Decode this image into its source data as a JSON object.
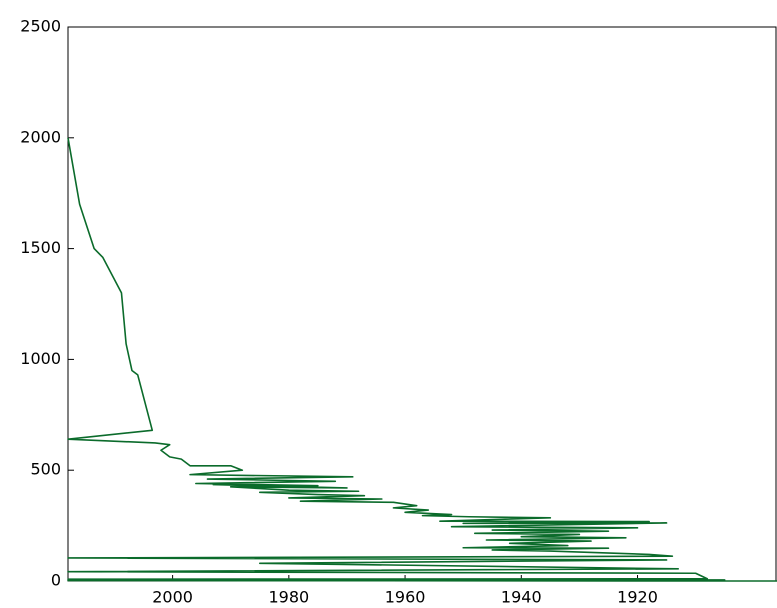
{
  "chart_data": {
    "type": "line",
    "color": "#0b6b2b",
    "x": [
      2018,
      2016,
      2013.5,
      2012,
      2008.8,
      2008,
      2007,
      2006,
      2003.5,
      2018,
      2003,
      2000.5,
      2002,
      2000.5,
      1998.5,
      1997,
      1990,
      1988,
      1997,
      1969,
      1994,
      1972,
      1996,
      1975,
      1993,
      1970,
      1990,
      1980,
      1968,
      1985,
      1975,
      1967,
      1980,
      1964,
      1978,
      1962,
      1958,
      1962,
      1956,
      1960,
      1952,
      1957,
      1949,
      1935,
      1954,
      1918,
      1950,
      1915,
      1952,
      1920,
      1945,
      1925,
      1948,
      1930,
      1940,
      1922,
      1946,
      1928,
      1942,
      1932,
      1950,
      1925,
      1945,
      1935,
      1918,
      1914,
      2018,
      1915,
      1985,
      1913,
      2018,
      1910,
      1908,
      2018,
      1905,
      2018,
      1896
    ],
    "values": [
      2000,
      1700,
      1500,
      1460,
      1300,
      1070,
      950,
      930,
      680,
      640,
      623,
      615,
      590,
      560,
      550,
      520,
      520,
      500,
      480,
      470,
      460,
      450,
      440,
      430,
      435,
      420,
      425,
      410,
      405,
      400,
      390,
      385,
      375,
      370,
      360,
      355,
      340,
      330,
      320,
      310,
      300,
      295,
      290,
      285,
      270,
      268,
      260,
      262,
      245,
      240,
      230,
      225,
      215,
      210,
      200,
      195,
      185,
      180,
      170,
      160,
      150,
      148,
      140,
      135,
      120,
      112,
      104,
      95,
      80,
      55,
      42,
      35,
      10,
      8,
      5,
      2,
      0
    ],
    "xlim": [
      2018,
      1896
    ],
    "xticks": [
      2000,
      1980,
      1960,
      1940,
      1920
    ],
    "ylim": [
      0,
      2500
    ],
    "yticks": [
      0,
      500,
      1000,
      1500,
      2000,
      2500
    ]
  }
}
